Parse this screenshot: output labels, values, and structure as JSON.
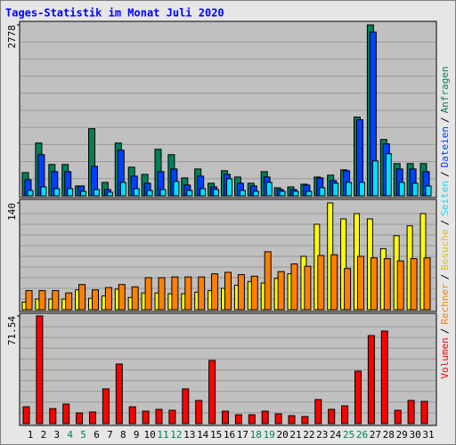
{
  "chart_data": {
    "type": "bar",
    "title": "Tages-Statistik im Monat Juli 2020",
    "categories": [
      "1",
      "2",
      "3",
      "4",
      "5",
      "6",
      "7",
      "8",
      "9",
      "10",
      "11",
      "12",
      "13",
      "14",
      "15",
      "16",
      "17",
      "18",
      "19",
      "20",
      "21",
      "22",
      "23",
      "24",
      "25",
      "26",
      "27",
      "28",
      "29",
      "30",
      "31"
    ],
    "category_colors": [
      "#000000",
      "#000000",
      "#000000",
      "#00805c",
      "#00805c",
      "#000000",
      "#000000",
      "#000000",
      "#000000",
      "#000000",
      "#00805c",
      "#00805c",
      "#000000",
      "#000000",
      "#000000",
      "#000000",
      "#000000",
      "#00805c",
      "#00805c",
      "#000000",
      "#000000",
      "#000000",
      "#000000",
      "#000000",
      "#00805c",
      "#00805c",
      "#000000",
      "#000000",
      "#000000",
      "#000000",
      "#000000"
    ],
    "legend_separator": "/",
    "panels": [
      {
        "ylim": [
          0,
          2778
        ],
        "yticks": [
          2778
        ],
        "series": [
          {
            "name": "Anfragen",
            "color": "#00805c",
            "values": [
              378,
              858,
              509,
              509,
              160,
              1091,
              218,
              858,
              465,
              349,
              756,
              669,
              291,
              436,
              204,
              407,
              305,
              204,
              393,
              131,
              145,
              189,
              305,
              335,
              422,
              1280,
              2778,
              916,
              524,
              524,
              524
            ]
          },
          {
            "name": "Dateien",
            "color": "#0040ff",
            "values": [
              262,
              669,
              393,
              393,
              160,
              480,
              102,
              742,
              320,
              204,
              393,
              436,
              175,
              320,
              145,
              349,
              204,
              160,
              305,
              102,
              102,
              175,
              291,
              247,
              407,
              1236,
              2662,
              844,
              436,
              436,
              393
            ]
          },
          {
            "name": "Seiten",
            "color": "#00e0ff",
            "values": [
              87,
              145,
              116,
              116,
              73,
              102,
              58,
              218,
              116,
              87,
              102,
              233,
              87,
              116,
              102,
              276,
              87,
              73,
              218,
              73,
              73,
              73,
              131,
              204,
              218,
              218,
              567,
              684,
              218,
              204,
              160
            ]
          }
        ]
      },
      {
        "ylim": [
          0,
          140
        ],
        "yticks": [
          140
        ],
        "series": [
          {
            "name": "Besuche",
            "color": "#ffff00",
            "values": [
              10,
              14,
              14,
              14,
              26,
              15,
              18,
              27,
              16,
              22,
              22,
              21,
              21,
              23,
              25,
              28,
              32,
              37,
              35,
              41,
              47,
              70,
              112,
              140,
              119,
              126,
              119,
              80,
              97,
              110,
              126
            ]
          },
          {
            "name": "Rechner",
            "color": "#ff8000",
            "values": [
              25,
              25,
              25,
              22,
              33,
              26,
              29,
              33,
              30,
              42,
              42,
              43,
              43,
              43,
              47,
              49,
              46,
              44,
              76,
              50,
              60,
              57,
              71,
              72,
              54,
              70,
              68,
              67,
              64,
              67,
              68
            ]
          }
        ]
      },
      {
        "ylim": [
          0,
          71.54
        ],
        "yticks": [
          71.54
        ],
        "series": [
          {
            "name": "Volumen",
            "color": "#ff0000",
            "values": [
              11.2,
              71.54,
              10.0,
              13.0,
              7.1,
              7.7,
              23.1,
              39.6,
              11.2,
              8.3,
              9.5,
              8.9,
              23.1,
              15.4,
              42.0,
              8.3,
              5.9,
              5.9,
              8.3,
              6.5,
              5.3,
              4.7,
              16.0,
              9.5,
              11.8,
              34.9,
              58.5,
              61.5,
              8.9,
              15.4,
              14.8
            ]
          }
        ]
      }
    ]
  }
}
